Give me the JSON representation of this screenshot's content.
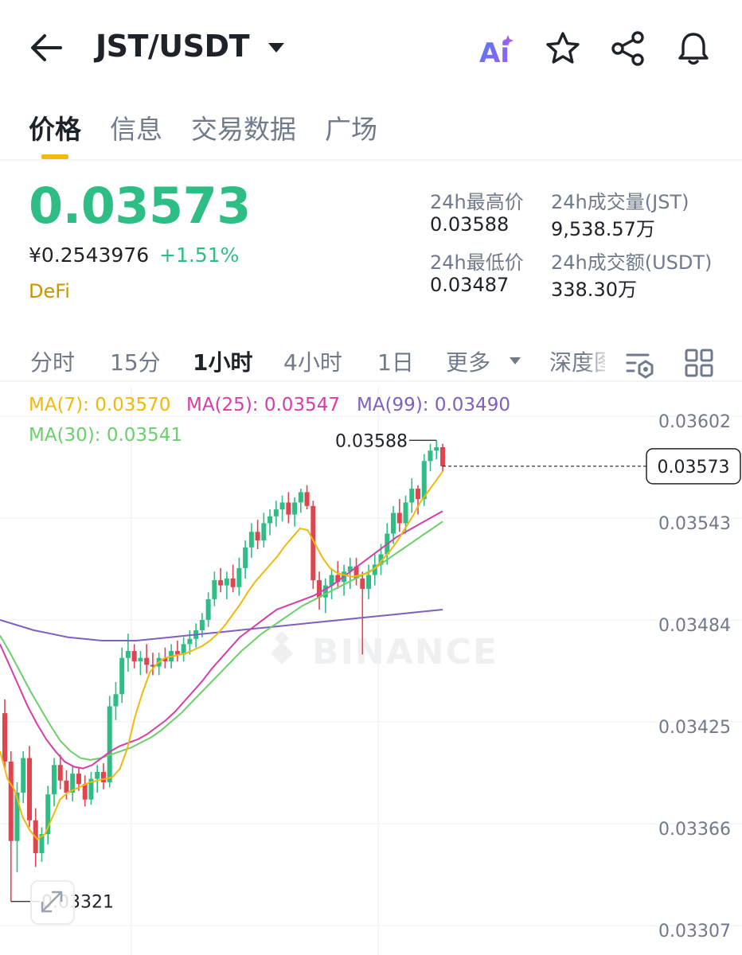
{
  "header": {
    "pair": "JST/USDT",
    "icons": [
      "back-arrow-icon",
      "dropdown-caret-icon",
      "ai-icon",
      "star-icon",
      "share-icon",
      "bell-icon"
    ]
  },
  "tabs": [
    {
      "label": "价格"
    },
    {
      "label": "信息"
    },
    {
      "label": "交易数据"
    },
    {
      "label": "广场"
    }
  ],
  "price": {
    "last": "0.03573",
    "cny": "¥0.2543976",
    "change": "+1.51%",
    "tag": "DeFi"
  },
  "stats": {
    "high_label": "24h最高价",
    "high": "0.03588",
    "low_label": "24h最低价",
    "low": "0.03487",
    "vol_label": "24h成交量(JST)",
    "vol": "9,538.57万",
    "amount_label": "24h成交额(USDT)",
    "amount": "338.30万"
  },
  "intervals": [
    {
      "label": "分时"
    },
    {
      "label": "15分"
    },
    {
      "label": "1小时"
    },
    {
      "label": "4小时"
    },
    {
      "label": "1日"
    },
    {
      "label": "更多"
    },
    {
      "label": "深度图"
    }
  ],
  "ma": {
    "ma7": "MA(7): 0.03570",
    "ma25": "MA(25): 0.03547",
    "ma99": "MA(99): 0.03490",
    "ma30": "MA(30): 0.03541"
  },
  "colors": {
    "up": "#2ebd85",
    "down": "#e0444e",
    "ma7": "#f0b90b",
    "ma25": "#d63da8",
    "ma99": "#7f5fbf",
    "ma30": "#6ccf6c",
    "accent": "#f0b90b"
  },
  "chart_data": {
    "type": "candlestick",
    "y_ticks": [
      "0.03602",
      "0.03543",
      "0.03484",
      "0.03425",
      "0.03366",
      "0.03307"
    ],
    "ylim": [
      0.0329,
      0.03619
    ],
    "current_price": "0.03573",
    "high_annotation": "0.03588",
    "low_annotation": "0.03321",
    "watermark": "BINANCE",
    "candles": [
      [
        0.0343,
        0.03438,
        0.03398,
        0.03402
      ],
      [
        0.03402,
        0.03408,
        0.03321,
        0.03356
      ],
      [
        0.03356,
        0.0339,
        0.03338,
        0.03384
      ],
      [
        0.03384,
        0.03408,
        0.03378,
        0.03404
      ],
      [
        0.03404,
        0.03411,
        0.03364,
        0.03368
      ],
      [
        0.03368,
        0.03375,
        0.03341,
        0.03349
      ],
      [
        0.03349,
        0.03364,
        0.03344,
        0.0336
      ],
      [
        0.0336,
        0.03388,
        0.03354,
        0.03383
      ],
      [
        0.03383,
        0.03404,
        0.03376,
        0.034
      ],
      [
        0.034,
        0.03406,
        0.03386,
        0.03391
      ],
      [
        0.03391,
        0.03397,
        0.0338,
        0.03384
      ],
      [
        0.03384,
        0.034,
        0.03379,
        0.03395
      ],
      [
        0.03395,
        0.03399,
        0.03385,
        0.03389
      ],
      [
        0.03389,
        0.03394,
        0.03376,
        0.0338
      ],
      [
        0.0338,
        0.03396,
        0.03377,
        0.03392
      ],
      [
        0.03392,
        0.034,
        0.03384,
        0.03396
      ],
      [
        0.03396,
        0.03401,
        0.03386,
        0.0339
      ],
      [
        0.0339,
        0.0344,
        0.03387,
        0.03434
      ],
      [
        0.03434,
        0.03448,
        0.03426,
        0.03441
      ],
      [
        0.03441,
        0.03468,
        0.03436,
        0.03462
      ],
      [
        0.03462,
        0.03476,
        0.03454,
        0.03466
      ],
      [
        0.03466,
        0.0347,
        0.03456,
        0.0346
      ],
      [
        0.0346,
        0.03466,
        0.03452,
        0.03462
      ],
      [
        0.03462,
        0.0347,
        0.03453,
        0.03458
      ],
      [
        0.03458,
        0.03465,
        0.03452,
        0.03457
      ],
      [
        0.03457,
        0.03465,
        0.03452,
        0.03462
      ],
      [
        0.03462,
        0.03468,
        0.03456,
        0.0346
      ],
      [
        0.0346,
        0.0347,
        0.03456,
        0.03466
      ],
      [
        0.03466,
        0.03472,
        0.0346,
        0.03464
      ],
      [
        0.03464,
        0.03474,
        0.0346,
        0.0347
      ],
      [
        0.0347,
        0.03478,
        0.03464,
        0.03473
      ],
      [
        0.03473,
        0.03482,
        0.03468,
        0.03478
      ],
      [
        0.03478,
        0.03488,
        0.03474,
        0.03484
      ],
      [
        0.03484,
        0.035,
        0.0348,
        0.03496
      ],
      [
        0.03496,
        0.03512,
        0.03492,
        0.03507
      ],
      [
        0.03507,
        0.03514,
        0.035,
        0.03504
      ],
      [
        0.03504,
        0.03512,
        0.03496,
        0.03508
      ],
      [
        0.03508,
        0.03516,
        0.035,
        0.03503
      ],
      [
        0.03503,
        0.0352,
        0.03498,
        0.03514
      ],
      [
        0.03514,
        0.0353,
        0.03508,
        0.03526
      ],
      [
        0.03526,
        0.0354,
        0.0352,
        0.03535
      ],
      [
        0.03535,
        0.03542,
        0.03525,
        0.0353
      ],
      [
        0.0353,
        0.03546,
        0.03526,
        0.0354
      ],
      [
        0.0354,
        0.03548,
        0.03533,
        0.03544
      ],
      [
        0.03544,
        0.03553,
        0.03538,
        0.03548
      ],
      [
        0.03548,
        0.03556,
        0.03541,
        0.03552
      ],
      [
        0.03552,
        0.03558,
        0.0354,
        0.03545
      ],
      [
        0.03545,
        0.03555,
        0.03538,
        0.03552
      ],
      [
        0.03552,
        0.0356,
        0.03546,
        0.03558
      ],
      [
        0.03558,
        0.03562,
        0.03548,
        0.0355
      ],
      [
        0.0355,
        0.03553,
        0.03502,
        0.03507
      ],
      [
        0.03507,
        0.03512,
        0.0349,
        0.03497
      ],
      [
        0.03497,
        0.03508,
        0.03488,
        0.03504
      ],
      [
        0.03504,
        0.03514,
        0.03496,
        0.0351
      ],
      [
        0.0351,
        0.03518,
        0.03502,
        0.03506
      ],
      [
        0.03506,
        0.03516,
        0.03498,
        0.03512
      ],
      [
        0.03512,
        0.0352,
        0.03502,
        0.03515
      ],
      [
        0.03515,
        0.0352,
        0.03504,
        0.03508
      ],
      [
        0.03508,
        0.03512,
        0.03464,
        0.03502
      ],
      [
        0.03502,
        0.03516,
        0.03496,
        0.0351
      ],
      [
        0.0351,
        0.03522,
        0.03504,
        0.03516
      ],
      [
        0.03516,
        0.03528,
        0.0351,
        0.03522
      ],
      [
        0.03522,
        0.0354,
        0.03516,
        0.03534
      ],
      [
        0.03534,
        0.0355,
        0.03528,
        0.03546
      ],
      [
        0.03546,
        0.03554,
        0.03535,
        0.0354
      ],
      [
        0.0354,
        0.03556,
        0.03534,
        0.03552
      ],
      [
        0.03552,
        0.03566,
        0.03546,
        0.0356
      ],
      [
        0.0356,
        0.03562,
        0.03545,
        0.03554
      ],
      [
        0.03554,
        0.0358,
        0.0355,
        0.03576
      ],
      [
        0.03576,
        0.03586,
        0.0357,
        0.03582
      ],
      [
        0.03582,
        0.03588,
        0.03577,
        0.03584
      ],
      [
        0.03584,
        0.03586,
        0.0357,
        0.03573
      ]
    ],
    "ma7": [
      0.03408,
      0.03392,
      0.03385,
      0.0337,
      0.03362,
      0.03357,
      0.0336,
      0.0337,
      0.0338,
      0.03384,
      0.03386,
      0.03388,
      0.0339,
      0.03391,
      0.03392,
      0.03393,
      0.03398,
      0.0341,
      0.03428,
      0.03442,
      0.03454,
      0.03459,
      0.03462,
      0.03463,
      0.03464,
      0.03465,
      0.03467,
      0.03469,
      0.03472,
      0.03476,
      0.03481,
      0.03487,
      0.03493,
      0.035,
      0.03506,
      0.03511,
      0.03516,
      0.03521,
      0.03527,
      0.03532,
      0.03537,
      0.03536,
      0.03528,
      0.0352,
      0.03514,
      0.03511,
      0.0351,
      0.03509,
      0.0351,
      0.03511,
      0.03514,
      0.03519,
      0.03524,
      0.0353,
      0.03537,
      0.03544,
      0.03552,
      0.03558,
      0.03564,
      0.0357
    ],
    "ma25": [
      0.0347,
      0.03458,
      0.03446,
      0.03434,
      0.03424,
      0.03415,
      0.03408,
      0.03402,
      0.03399,
      0.03398,
      0.034,
      0.03404,
      0.03408,
      0.03411,
      0.03413,
      0.03415,
      0.03418,
      0.03422,
      0.03426,
      0.03431,
      0.03437,
      0.03443,
      0.03449,
      0.03456,
      0.03462,
      0.03468,
      0.03474,
      0.03478,
      0.03482,
      0.03486,
      0.0349,
      0.03492,
      0.03494,
      0.03496,
      0.03498,
      0.03501,
      0.03504,
      0.03508,
      0.03512,
      0.03516,
      0.0352,
      0.03524,
      0.03528,
      0.03532,
      0.03535,
      0.03538,
      0.03541,
      0.03544,
      0.03547
    ],
    "ma30": [
      0.03475,
      0.03465,
      0.03454,
      0.03443,
      0.03433,
      0.03423,
      0.03414,
      0.03408,
      0.03404,
      0.03403,
      0.03404,
      0.03406,
      0.03408,
      0.0341,
      0.03413,
      0.03416,
      0.0342,
      0.03425,
      0.0343,
      0.03436,
      0.03442,
      0.03448,
      0.03454,
      0.0346,
      0.03466,
      0.03471,
      0.03476,
      0.0348,
      0.03484,
      0.03488,
      0.03492,
      0.03495,
      0.03498,
      0.03501,
      0.03504,
      0.03507,
      0.0351,
      0.03513,
      0.03517,
      0.03521,
      0.03525,
      0.03529,
      0.03533,
      0.03537,
      0.03541
    ],
    "ma99": [
      0.03484,
      0.03481,
      0.03478,
      0.03476,
      0.03474,
      0.03473,
      0.03472,
      0.03472,
      0.03472,
      0.03473,
      0.03474,
      0.03475,
      0.03476,
      0.03477,
      0.03478,
      0.03479,
      0.0348,
      0.03481,
      0.03482,
      0.03483,
      0.03484,
      0.03485,
      0.03486,
      0.03487,
      0.03488,
      0.03489,
      0.0349
    ]
  }
}
